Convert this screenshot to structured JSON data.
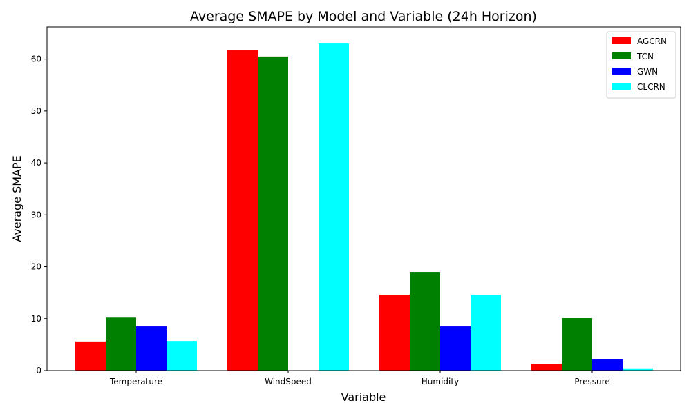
{
  "chart_data": {
    "type": "bar",
    "title": "Average SMAPE by Model and Variable (24h Horizon)",
    "xlabel": "Variable",
    "ylabel": "Average SMAPE",
    "categories": [
      "Temperature",
      "WindSpeed",
      "Humidity",
      "Pressure"
    ],
    "series": [
      {
        "name": "AGCRN",
        "color": "#ff0000",
        "values": [
          5.6,
          61.8,
          14.6,
          1.3
        ]
      },
      {
        "name": "TCN",
        "color": "#008000",
        "values": [
          10.2,
          60.5,
          19.0,
          10.1
        ]
      },
      {
        "name": "GWN",
        "color": "#0000ff",
        "values": [
          8.5,
          0,
          8.5,
          2.2
        ]
      },
      {
        "name": "CLCRN",
        "color": "#00ffff",
        "values": [
          5.7,
          63.0,
          14.6,
          0.3
        ]
      }
    ],
    "ylim": [
      0,
      66.2
    ],
    "yticks": [
      0,
      10,
      20,
      30,
      40,
      50,
      60
    ],
    "grid": false,
    "legend_position": "top-right"
  }
}
